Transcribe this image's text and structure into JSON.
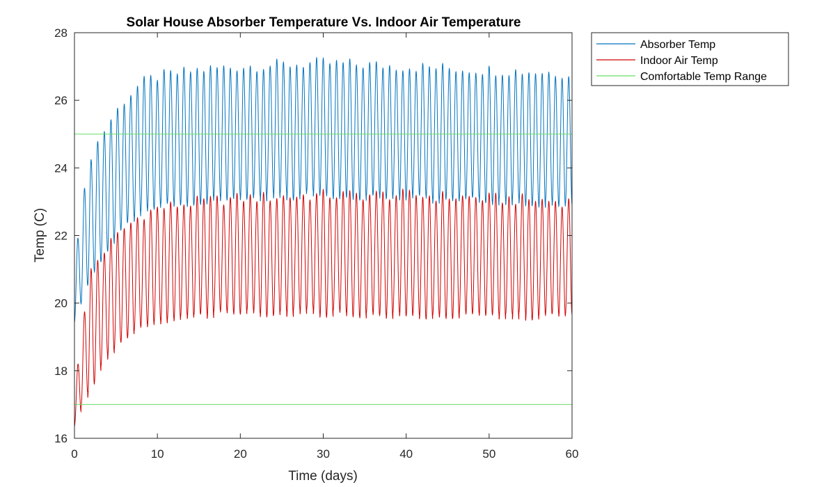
{
  "chart_data": {
    "type": "line",
    "title": "Solar House Absorber Temperature Vs. Indoor Air Temperature",
    "xlabel": "Time (days)",
    "ylabel": "Temp (C)",
    "xlim": [
      0,
      60
    ],
    "ylim": [
      16,
      28
    ],
    "xticks": [
      0,
      10,
      20,
      30,
      40,
      50,
      60
    ],
    "yticks": [
      16,
      18,
      20,
      22,
      24,
      26,
      28
    ],
    "grid": false,
    "legend_location": "outside-top-right",
    "cycle_period_days": 0.8,
    "series": [
      {
        "name": "Absorber Temp",
        "color": "#0072bd",
        "kind": "oscillating",
        "envelope_days": [
          0,
          2,
          4,
          6,
          8,
          10,
          15,
          20,
          30,
          40,
          50,
          60
        ],
        "envelope_max": [
          21.5,
          24.4,
          25.3,
          26.0,
          26.5,
          26.7,
          26.9,
          27.0,
          27.1,
          27.0,
          26.9,
          26.8
        ],
        "envelope_min": [
          19.4,
          20.8,
          21.6,
          22.2,
          22.6,
          22.8,
          23.0,
          23.1,
          23.2,
          23.1,
          23.0,
          22.9
        ]
      },
      {
        "name": "Indoor Air Temp",
        "color": "#d00000",
        "kind": "oscillating",
        "envelope_days": [
          0,
          2,
          4,
          6,
          8,
          10,
          15,
          20,
          30,
          40,
          50,
          60
        ],
        "envelope_max": [
          17.6,
          21.0,
          21.7,
          22.2,
          22.6,
          22.8,
          23.0,
          23.1,
          23.2,
          23.2,
          23.1,
          23.0
        ],
        "envelope_min": [
          16.4,
          17.5,
          18.4,
          18.9,
          19.2,
          19.4,
          19.6,
          19.7,
          19.7,
          19.6,
          19.6,
          19.6
        ]
      },
      {
        "name": "Comfortable Temp Range",
        "color": "#66dd66",
        "kind": "hlines",
        "levels": [
          17,
          25
        ]
      }
    ]
  }
}
